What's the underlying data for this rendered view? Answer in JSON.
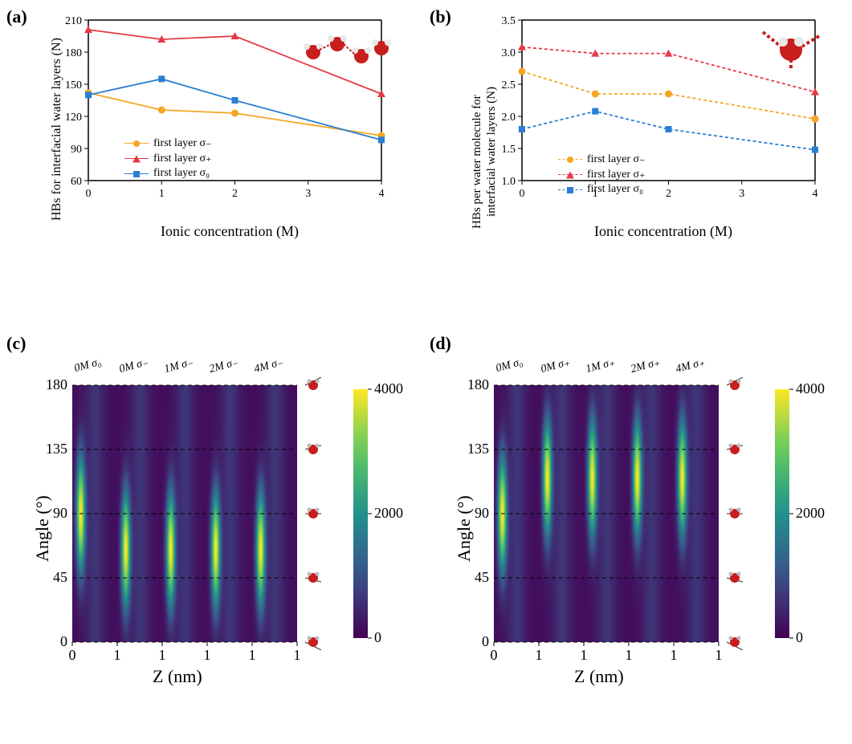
{
  "panel_a": {
    "label": "(a)",
    "type": "line",
    "xlabel": "Ionic concentration (M)",
    "ylabel": "HBs for interfacial water layers (N)",
    "xlim": [
      0,
      4
    ],
    "xtick_step": 1,
    "ylim": [
      60,
      210
    ],
    "ytick_step": 30,
    "title_fontsize": 18,
    "tick_fontsize": 14,
    "background_color": "#ffffff",
    "series": [
      {
        "name": "first layer σ₋",
        "color": "#f5a623",
        "marker": "circle",
        "dash": "none",
        "x": [
          0,
          1,
          2,
          4
        ],
        "y": [
          142,
          126,
          123,
          102
        ]
      },
      {
        "name": "first layer σ₊",
        "color": "#e63946",
        "marker": "triangle",
        "dash": "none",
        "x": [
          0,
          1,
          2,
          4
        ],
        "y": [
          201,
          192,
          195,
          141
        ]
      },
      {
        "name": "first layer σ₀",
        "color": "#2a7fd4",
        "marker": "square",
        "dash": "none",
        "x": [
          0,
          1,
          2,
          4
        ],
        "y": [
          140,
          155,
          135,
          98
        ]
      }
    ],
    "legend_labels": {
      "s0": "first layer σ₋",
      "s1": "first layer σ₊",
      "s2": "first layer σ₀"
    }
  },
  "panel_b": {
    "label": "(b)",
    "type": "line",
    "xlabel": "Ionic concentration (M)",
    "ylabel": "HBs per water molecule for\ninterfacial water layers (N)",
    "ylabel_line1": "HBs per water molecule for",
    "ylabel_line2": "interfacial water layers (N)",
    "xlim": [
      0,
      4
    ],
    "xtick_step": 1,
    "ylim": [
      1,
      3.5
    ],
    "ytick_step": 0.5,
    "background_color": "#ffffff",
    "series": [
      {
        "name": "first layer σ₋",
        "color": "#f5a623",
        "marker": "circle",
        "dash": "4,3",
        "x": [
          0,
          1,
          2,
          4
        ],
        "y": [
          2.7,
          2.35,
          2.35,
          1.96
        ]
      },
      {
        "name": "first layer σ₊",
        "color": "#e63946",
        "marker": "triangle",
        "dash": "4,3",
        "x": [
          0,
          1,
          2,
          4
        ],
        "y": [
          3.08,
          2.98,
          2.98,
          2.38
        ]
      },
      {
        "name": "first layer σ₀",
        "color": "#2a7fd4",
        "marker": "square",
        "dash": "4,3",
        "x": [
          0,
          1,
          2,
          4
        ],
        "y": [
          1.8,
          2.08,
          1.8,
          1.48
        ]
      }
    ],
    "legend_labels": {
      "s0": "first layer σ₋",
      "s1": "first layer σ₊",
      "s2": "first layer σ₀"
    }
  },
  "panel_c": {
    "label": "(c)",
    "type": "heatmap",
    "xlabel": "Z (nm)",
    "ylabel": "Angle (°)",
    "ylim": [
      0,
      180
    ],
    "ytick_step": 45,
    "xtick_pairs": [
      "0",
      "1",
      "1",
      "1",
      "1",
      "1"
    ],
    "colormap": "viridis",
    "colorbar_ticks": [
      0,
      2000,
      4000
    ],
    "colorbar_ticklabels": {
      "t0": "0",
      "t1": "2000",
      "t2": "4000"
    },
    "columns": [
      {
        "label": "0M σ₀",
        "band_center": 90
      },
      {
        "label": "0M σ₋",
        "band_center": 65
      },
      {
        "label": "1M σ₋",
        "band_center": 65
      },
      {
        "label": "2M σ₋",
        "band_center": 65
      },
      {
        "label": "4M σ₋",
        "band_center": 65
      }
    ],
    "bg_low": "#440154",
    "bg_mid": "#21918c",
    "bg_high": "#fde725"
  },
  "panel_d": {
    "label": "(d)",
    "type": "heatmap",
    "xlabel": "Z (nm)",
    "ylabel": "Angle (°)",
    "ylim": [
      0,
      180
    ],
    "ytick_step": 45,
    "xtick_pairs": [
      "0",
      "1",
      "1",
      "1",
      "1",
      "1"
    ],
    "colormap": "viridis",
    "colorbar_ticks": [
      0,
      2000,
      4000
    ],
    "colorbar_ticklabels": {
      "t0": "0",
      "t1": "2000",
      "t2": "4000"
    },
    "columns": [
      {
        "label": "0M σ₀",
        "band_center": 90
      },
      {
        "label": "0M σ₊",
        "band_center": 115
      },
      {
        "label": "1M σ₊",
        "band_center": 115
      },
      {
        "label": "2M σ₊",
        "band_center": 115
      },
      {
        "label": "4M σ₊",
        "band_center": 115
      }
    ],
    "bg_low": "#440154",
    "bg_mid": "#21918c",
    "bg_high": "#fde725"
  },
  "colors": {
    "axis": "#000000",
    "grid": "#000000",
    "molecule_oxygen": "#c81e1e",
    "molecule_hydrogen": "#e8e8e8",
    "molecule_bond": "#aaaaaa"
  }
}
